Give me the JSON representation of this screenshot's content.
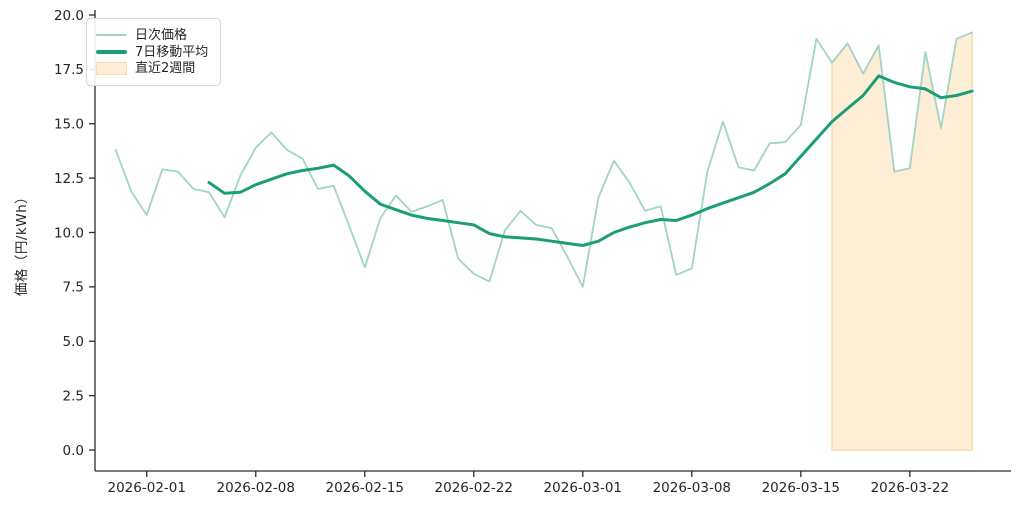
{
  "figure": {
    "background": "#ffffff"
  },
  "axis": {
    "spine_color": "#2b2b2b",
    "tick_label_color": "#262626"
  },
  "legend": {
    "position": "upper-left",
    "items": [
      {
        "label": "日次価格",
        "type": "line",
        "color": "#a2d5c1"
      },
      {
        "label": "7日移動平均",
        "type": "line",
        "color": "#1b9e77"
      },
      {
        "label": "直近2週間",
        "type": "patch",
        "color": "#fdeed5"
      }
    ]
  },
  "chart_data": {
    "type": "line",
    "title": "",
    "xlabel": "",
    "ylabel": "価格（円/kWh）",
    "ylim": [
      0,
      20
    ],
    "grid": false,
    "legend_position": "upper-left",
    "yticks": [
      0.0,
      2.5,
      5.0,
      7.5,
      10.0,
      12.5,
      15.0,
      17.5,
      20.0
    ],
    "xtick_labels": [
      "2026-02-01",
      "2026-02-08",
      "2026-02-15",
      "2026-02-22",
      "2026-03-01",
      "2026-03-08",
      "2026-03-15",
      "2026-03-22"
    ],
    "x": [
      "2026-01-30",
      "2026-01-31",
      "2026-02-01",
      "2026-02-02",
      "2026-02-03",
      "2026-02-04",
      "2026-02-05",
      "2026-02-06",
      "2026-02-07",
      "2026-02-08",
      "2026-02-09",
      "2026-02-10",
      "2026-02-11",
      "2026-02-12",
      "2026-02-13",
      "2026-02-14",
      "2026-02-15",
      "2026-02-16",
      "2026-02-17",
      "2026-02-18",
      "2026-02-19",
      "2026-02-20",
      "2026-02-21",
      "2026-02-22",
      "2026-02-23",
      "2026-02-24",
      "2026-02-25",
      "2026-02-26",
      "2026-02-27",
      "2026-02-28",
      "2026-03-01",
      "2026-03-02",
      "2026-03-03",
      "2026-03-04",
      "2026-03-05",
      "2026-03-06",
      "2026-03-07",
      "2026-03-08",
      "2026-03-09",
      "2026-03-10",
      "2026-03-11",
      "2026-03-12",
      "2026-03-13",
      "2026-03-14",
      "2026-03-15",
      "2026-03-16",
      "2026-03-17",
      "2026-03-18",
      "2026-03-19",
      "2026-03-20",
      "2026-03-21",
      "2026-03-22",
      "2026-03-23",
      "2026-03-24",
      "2026-03-25",
      "2026-03-26"
    ],
    "series": [
      {
        "name": "日次価格",
        "color": "#a2d5c1",
        "width": 1.8,
        "values": [
          13.8,
          11.9,
          10.8,
          12.9,
          12.8,
          12.0,
          11.85,
          10.7,
          12.6,
          13.9,
          14.6,
          13.8,
          13.4,
          12.0,
          12.15,
          10.3,
          8.4,
          10.65,
          11.7,
          10.95,
          11.2,
          11.5,
          8.8,
          8.1,
          7.75,
          10.1,
          11.0,
          10.35,
          10.2,
          8.9,
          7.5,
          11.6,
          13.3,
          12.3,
          11.0,
          11.2,
          8.05,
          8.35,
          12.8,
          15.1,
          13.0,
          12.85,
          14.1,
          14.15,
          14.95,
          18.9,
          17.8,
          18.7,
          17.3,
          18.6,
          12.8,
          12.95,
          18.3,
          14.8,
          18.9,
          19.2
        ]
      },
      {
        "name": "7日移動平均",
        "color": "#1b9e77",
        "width": 3,
        "values": [
          null,
          null,
          null,
          null,
          null,
          null,
          12.3,
          11.8,
          11.85,
          12.2,
          12.45,
          12.7,
          12.85,
          12.95,
          13.1,
          12.6,
          11.9,
          11.3,
          11.05,
          10.8,
          10.65,
          10.55,
          10.45,
          10.35,
          9.95,
          9.8,
          9.75,
          9.7,
          9.6,
          9.5,
          9.4,
          9.6,
          10.0,
          10.25,
          10.45,
          10.6,
          10.55,
          10.8,
          11.1,
          11.35,
          11.6,
          11.85,
          12.25,
          12.7,
          13.5,
          14.3,
          15.1,
          15.7,
          16.3,
          17.2,
          16.9,
          16.7,
          16.6,
          16.2,
          16.3,
          16.5
        ]
      }
    ],
    "band": {
      "label": "直近2週間",
      "x_start": "2026-03-17",
      "x_end": "2026-03-26",
      "baseline": 0,
      "fill": "#fdeed5",
      "edge": "#f8dcb0"
    }
  }
}
